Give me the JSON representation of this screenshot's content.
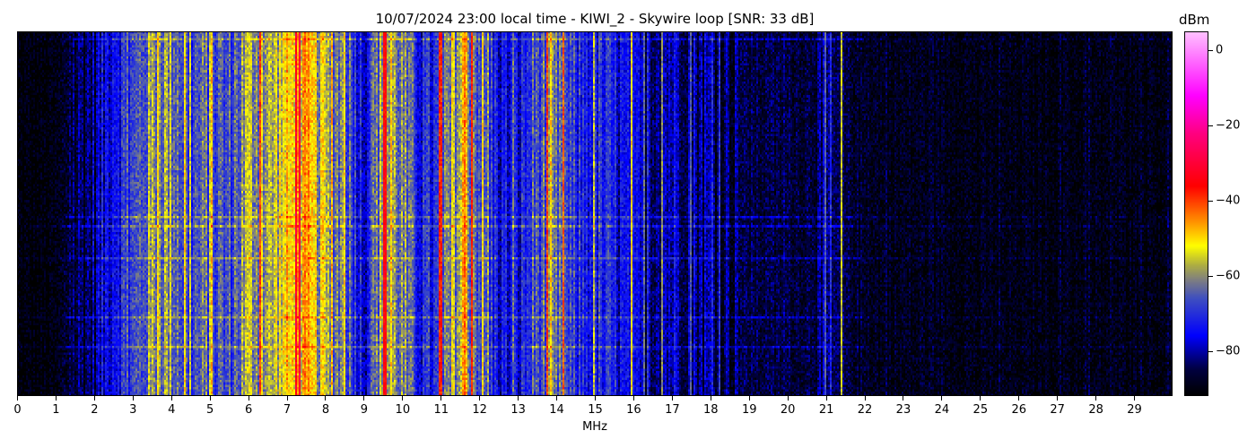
{
  "chart_data": {
    "type": "heatmap",
    "title": "10/07/2024 23:00 local time - KIWI_2 - Skywire loop [SNR: 33 dB]",
    "xlabel": "MHz",
    "xlim": [
      0,
      30
    ],
    "x_ticks": [
      "0",
      "1",
      "2",
      "3",
      "4",
      "5",
      "6",
      "7",
      "8",
      "9",
      "10",
      "11",
      "12",
      "13",
      "14",
      "15",
      "16",
      "17",
      "18",
      "19",
      "20",
      "21",
      "22",
      "23",
      "24",
      "25",
      "26",
      "27",
      "28",
      "29"
    ],
    "colorbar": {
      "label": "dBm",
      "range": [
        -92,
        5
      ],
      "ticks": [
        0,
        -20,
        -40,
        -60,
        -80
      ],
      "tick_labels": [
        "0",
        "−20",
        "−40",
        "−60",
        "−80"
      ],
      "colormap_stops": [
        [
          -92,
          "#000000"
        ],
        [
          -85,
          "#000040"
        ],
        [
          -76,
          "#0000ff"
        ],
        [
          -66,
          "#4050c0"
        ],
        [
          -61,
          "#808080"
        ],
        [
          -57,
          "#b0b040"
        ],
        [
          -52,
          "#ffff00"
        ],
        [
          -46,
          "#ff9900"
        ],
        [
          -36,
          "#ff0000"
        ],
        [
          -22,
          "#ff0080"
        ],
        [
          -12,
          "#ff00ff"
        ],
        [
          5,
          "#ffc0ff"
        ]
      ]
    },
    "background_profile_step_mhz": 0.5,
    "background_profile_dbm": [
      -92,
      -92,
      -91,
      -85,
      -82,
      -72,
      -70,
      -60,
      -60,
      -68,
      -65,
      -68,
      -58,
      -60,
      -52,
      -50,
      -60,
      -62,
      -76,
      -58,
      -62,
      -74,
      -72,
      -56,
      -64,
      -75,
      -76,
      -66,
      -66,
      -72,
      -72,
      -74,
      -80,
      -80,
      -78,
      -80,
      -82,
      -84,
      -86,
      -86,
      -86,
      -86,
      -84,
      -86,
      -88,
      -89,
      -89,
      -89,
      -89,
      -89,
      -90,
      -90,
      -90,
      -90,
      -90,
      -90,
      -90,
      -90,
      -90,
      -90,
      -90
    ],
    "carriers": [
      {
        "mhz": 3.65,
        "dbm": -52
      },
      {
        "mhz": 4.35,
        "dbm": -50
      },
      {
        "mhz": 5.0,
        "dbm": -55
      },
      {
        "mhz": 6.3,
        "dbm": -40
      },
      {
        "mhz": 7.25,
        "dbm": -32
      },
      {
        "mhz": 7.35,
        "dbm": -30
      },
      {
        "mhz": 8.5,
        "dbm": -50
      },
      {
        "mhz": 9.55,
        "dbm": -35
      },
      {
        "mhz": 11.0,
        "dbm": -38
      },
      {
        "mhz": 11.8,
        "dbm": -38
      },
      {
        "mhz": 12.1,
        "dbm": -50
      },
      {
        "mhz": 13.75,
        "dbm": -40
      },
      {
        "mhz": 14.2,
        "dbm": -42
      },
      {
        "mhz": 15.95,
        "dbm": -50
      },
      {
        "mhz": 16.75,
        "dbm": -60
      },
      {
        "mhz": 17.5,
        "dbm": -65
      },
      {
        "mhz": 21.0,
        "dbm": -65
      },
      {
        "mhz": 21.4,
        "dbm": -55
      }
    ]
  }
}
